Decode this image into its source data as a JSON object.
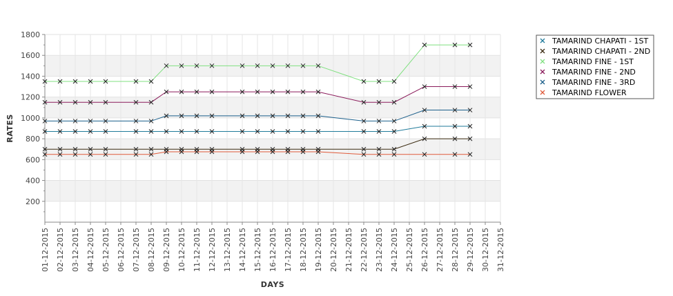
{
  "chart_data": {
    "type": "line",
    "title": "",
    "xlabel": "DAYS",
    "ylabel": "RATES",
    "ylim": [
      0,
      1800
    ],
    "y_ticks": [
      200,
      400,
      600,
      800,
      1000,
      1200,
      1400,
      1600,
      1800
    ],
    "grid": true,
    "legend_position": "right",
    "categories": [
      "01-12-2015",
      "02-12-2015",
      "03-12-2015",
      "04-12-2015",
      "05-12-2015",
      "06-12-2015",
      "07-12-2015",
      "08-12-2015",
      "09-12-2015",
      "10-12-2015",
      "11-12-2015",
      "12-12-2015",
      "13-12-2015",
      "14-12-2015",
      "15-12-2015",
      "16-12-2015",
      "17-12-2015",
      "18-12-2015",
      "19-12-2015",
      "20-12-2015",
      "21-12-2015",
      "22-12-2015",
      "23-12-2015",
      "24-12-2015",
      "25-12-2015",
      "26-12-2015",
      "27-12-2015",
      "28-12-2015",
      "29-12-2015",
      "30-12-2015",
      "31-12-2015"
    ],
    "series": [
      {
        "name": "TAMARIND CHAPATI - 1ST",
        "color": "#1f7a9a",
        "values": [
          870,
          870,
          870,
          870,
          870,
          null,
          870,
          870,
          870,
          870,
          870,
          870,
          null,
          870,
          870,
          870,
          870,
          870,
          870,
          null,
          null,
          870,
          870,
          870,
          null,
          920,
          null,
          920,
          920,
          null,
          null
        ]
      },
      {
        "name": "TAMARIND CHAPATI - 2ND",
        "color": "#3a2a10",
        "values": [
          700,
          700,
          700,
          700,
          700,
          null,
          700,
          700,
          700,
          700,
          700,
          700,
          null,
          700,
          700,
          700,
          700,
          700,
          700,
          null,
          null,
          700,
          700,
          700,
          null,
          800,
          null,
          800,
          800,
          null,
          null
        ]
      },
      {
        "name": "TAMARIND FINE - 1ST",
        "color": "#7fe07f",
        "values": [
          1350,
          1350,
          1350,
          1350,
          1350,
          null,
          1350,
          1350,
          1500,
          1500,
          1500,
          1500,
          null,
          1500,
          1500,
          1500,
          1500,
          1500,
          1500,
          null,
          null,
          1350,
          1350,
          1350,
          null,
          1700,
          null,
          1700,
          1700,
          null,
          null
        ]
      },
      {
        "name": "TAMARIND FINE - 2ND",
        "color": "#8a1a5a",
        "values": [
          1150,
          1150,
          1150,
          1150,
          1150,
          null,
          1150,
          1150,
          1250,
          1250,
          1250,
          1250,
          null,
          1250,
          1250,
          1250,
          1250,
          1250,
          1250,
          null,
          null,
          1150,
          1150,
          1150,
          null,
          1300,
          null,
          1300,
          1300,
          null,
          null
        ]
      },
      {
        "name": "TAMARIND FINE - 3RD",
        "color": "#1a5e8a",
        "values": [
          970,
          970,
          970,
          970,
          970,
          null,
          970,
          970,
          1020,
          1020,
          1020,
          1020,
          null,
          1020,
          1020,
          1020,
          1020,
          1020,
          1020,
          null,
          null,
          970,
          970,
          970,
          null,
          1075,
          null,
          1075,
          1075,
          null,
          null
        ]
      },
      {
        "name": "TAMARIND FLOWER",
        "color": "#e05a3a",
        "values": [
          650,
          650,
          650,
          650,
          650,
          null,
          650,
          650,
          675,
          675,
          675,
          675,
          null,
          675,
          675,
          675,
          675,
          675,
          675,
          null,
          null,
          650,
          650,
          650,
          null,
          650,
          null,
          650,
          650,
          null,
          null
        ]
      }
    ]
  }
}
